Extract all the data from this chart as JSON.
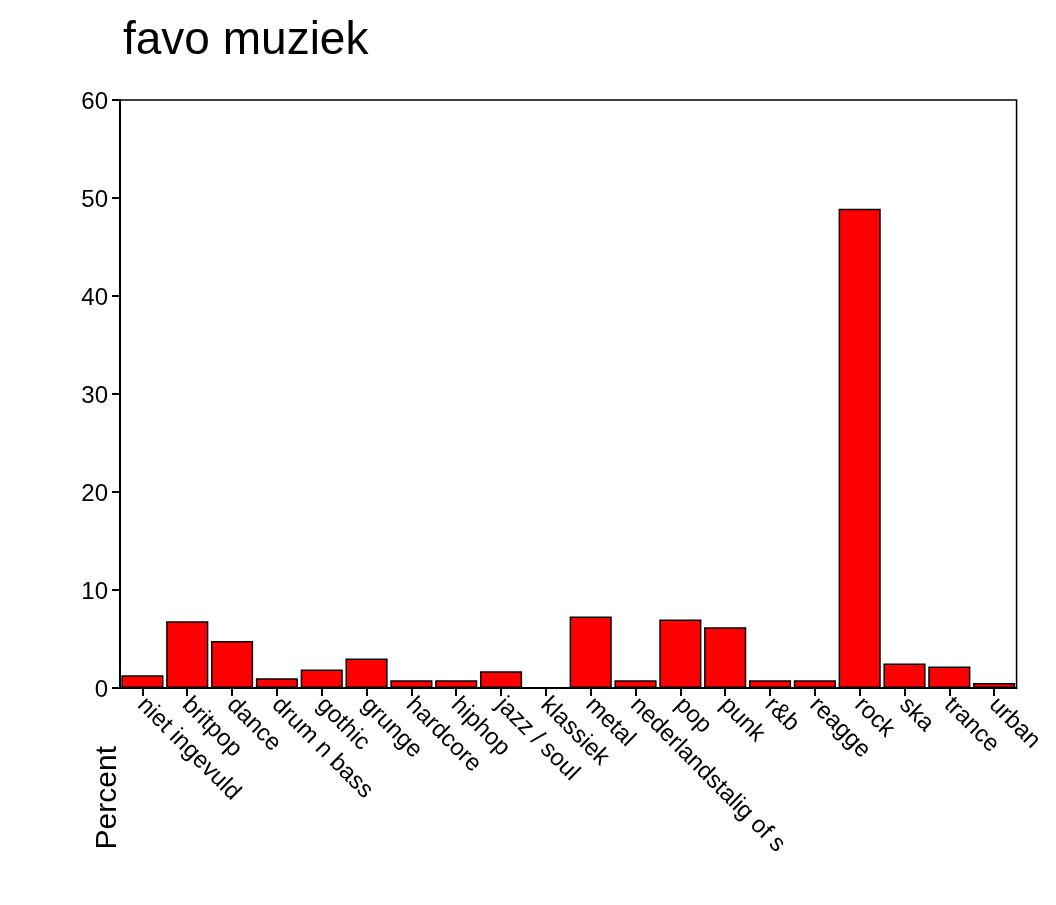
{
  "chart_data": {
    "type": "bar",
    "title": "favo muziek",
    "ylabel": "Percent",
    "categories": [
      "niet ingevuld",
      "britpop",
      "dance",
      "drum n bass",
      "gothic",
      "grunge",
      "hardcore",
      "hiphop",
      "jazz / soul",
      "klassiek",
      "metal",
      "nederlandstalig of s",
      "pop",
      "punk",
      "r&b",
      "reagge",
      "rock",
      "ska",
      "trance",
      "urban"
    ],
    "values": [
      1.3,
      6.8,
      4.8,
      1.0,
      1.9,
      3.0,
      0.8,
      0.8,
      1.7,
      0,
      7.3,
      0.8,
      7.0,
      6.2,
      0.8,
      0.8,
      48.9,
      2.5,
      2.2,
      0.5
    ],
    "color": "#ff0000",
    "ylim": [
      0,
      60
    ],
    "yticks": [
      0,
      10,
      20,
      30,
      40,
      50,
      60
    ],
    "grid": false
  }
}
